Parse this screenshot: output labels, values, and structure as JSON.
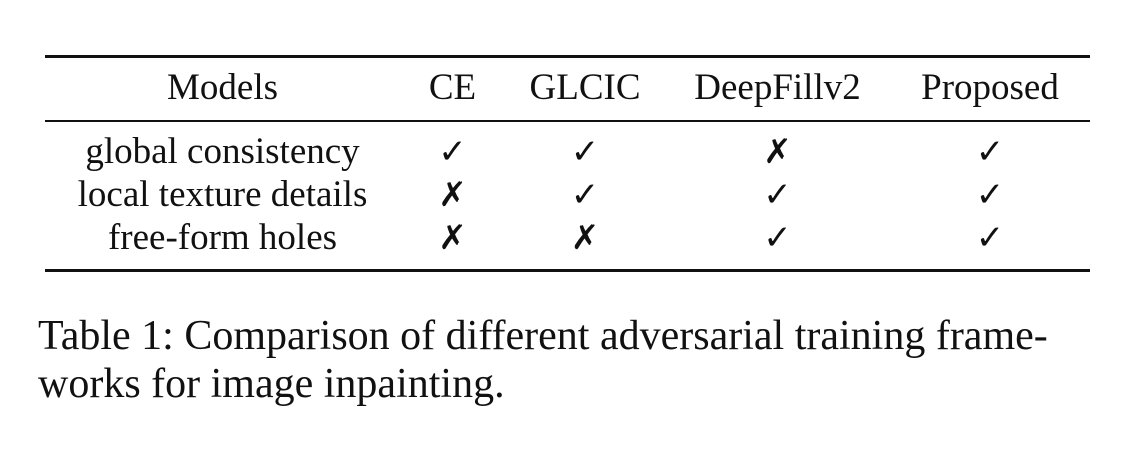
{
  "table": {
    "headers": [
      "Models",
      "CE",
      "GLCIC",
      "DeepFillv2",
      "Proposed"
    ],
    "rows": [
      {
        "feature": "global consistency",
        "marks": [
          "✓",
          "✓",
          "✗",
          "✓"
        ]
      },
      {
        "feature": "local texture details",
        "marks": [
          "✗",
          "✓",
          "✓",
          "✓"
        ]
      },
      {
        "feature": "free-form holes",
        "marks": [
          "✗",
          "✗",
          "✓",
          "✓"
        ]
      }
    ]
  },
  "caption": {
    "line1": "Table 1: Comparison of different adversarial training frame-",
    "line2": "works for image inpainting."
  }
}
